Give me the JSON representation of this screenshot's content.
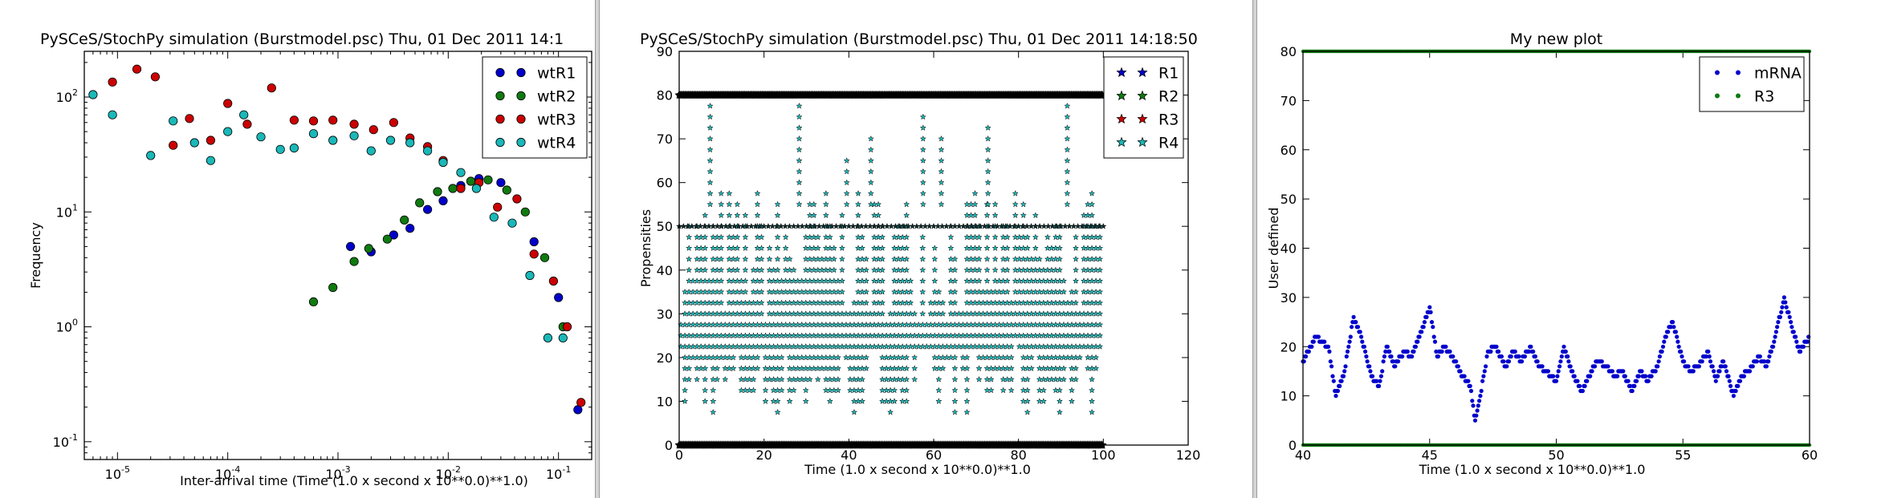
{
  "window": {
    "panel_count": 3
  },
  "chart_data": [
    {
      "type": "scatter",
      "title": "PySCeS/StochPy simulation (Burstmodel.psc) Thu, 01 Dec 2011 14:1",
      "xlabel": "Inter-arrival time (Time (1.0 x second x 10**0.0)**1.0)",
      "ylabel": "Frequency",
      "xscale": "log",
      "yscale": "log",
      "xlim": [
        5e-06,
        0.2
      ],
      "ylim": [
        0.07,
        250
      ],
      "x_ticks": [
        {
          "v": 1e-05,
          "b": "10",
          "e": "-5"
        },
        {
          "v": 0.0001,
          "b": "10",
          "e": "-4"
        },
        {
          "v": 0.001,
          "b": "10",
          "e": "-3"
        },
        {
          "v": 0.01,
          "b": "10",
          "e": "-2"
        },
        {
          "v": 0.1,
          "b": "10",
          "e": "-1"
        }
      ],
      "y_ticks": [
        {
          "v": 0.1,
          "b": "10",
          "e": "-1"
        },
        {
          "v": 1,
          "b": "10",
          "e": "0"
        },
        {
          "v": 10,
          "b": "10",
          "e": "1"
        },
        {
          "v": 100,
          "b": "10",
          "e": "2"
        }
      ],
      "legend_position": "top-right",
      "grid": false,
      "series": [
        {
          "name": "wtR1",
          "color": "#0000cc",
          "marker": "circle",
          "x": [
            0.0013,
            0.002,
            0.0032,
            0.0045,
            0.0065,
            0.009,
            0.013,
            0.019,
            0.03,
            0.06,
            0.1,
            0.15
          ],
          "y": [
            5.0,
            4.5,
            6.3,
            7.2,
            10.5,
            12.5,
            17.0,
            19.5,
            18.0,
            5.5,
            1.8,
            0.19
          ]
        },
        {
          "name": "wtR2",
          "color": "#107a10",
          "marker": "circle",
          "x": [
            0.0006,
            0.0009,
            0.0014,
            0.0019,
            0.0028,
            0.004,
            0.0055,
            0.008,
            0.011,
            0.016,
            0.023,
            0.034,
            0.05,
            0.075,
            0.11
          ],
          "y": [
            1.65,
            2.2,
            3.7,
            4.8,
            5.8,
            8.5,
            12.0,
            15.0,
            16.0,
            18.5,
            19.0,
            15.5,
            10.0,
            4.0,
            1.0
          ]
        },
        {
          "name": "wtR3",
          "color": "#cc0000",
          "marker": "circle",
          "x": [
            9e-06,
            1.5e-05,
            2.2e-05,
            3.2e-05,
            4.5e-05,
            7e-05,
            0.0001,
            0.00015,
            0.00025,
            0.0004,
            0.0006,
            0.0009,
            0.0014,
            0.0021,
            0.0032,
            0.0045,
            0.0065,
            0.009,
            0.013,
            0.019,
            0.028,
            0.042,
            0.06,
            0.09,
            0.12,
            0.16
          ],
          "y": [
            135,
            175,
            150,
            38,
            65,
            42,
            88,
            58,
            120,
            63,
            62,
            63,
            58,
            52,
            60,
            44,
            37,
            28,
            16,
            18,
            11,
            13,
            4.3,
            2.5,
            1.0,
            0.22
          ]
        },
        {
          "name": "wtR4",
          "color": "#1ab8b8",
          "marker": "circle",
          "x": [
            6e-06,
            9e-06,
            2e-05,
            3.2e-05,
            5e-05,
            7e-05,
            0.0001,
            0.00014,
            0.0002,
            0.0003,
            0.0004,
            0.0006,
            0.0009,
            0.0014,
            0.002,
            0.003,
            0.0045,
            0.0065,
            0.009,
            0.013,
            0.018,
            0.026,
            0.038,
            0.055,
            0.08,
            0.11
          ],
          "y": [
            105,
            70,
            31,
            62,
            40,
            28,
            50,
            70,
            45,
            35,
            36,
            48,
            42,
            46,
            34,
            42,
            40,
            34,
            27,
            22,
            16,
            9,
            8,
            2.8,
            0.8,
            0.8
          ]
        }
      ]
    },
    {
      "type": "scatter",
      "title": "PySCeS/StochPy simulation (Burstmodel.psc) Thu, 01 Dec 2011 14:18:50",
      "xlabel": "Time (1.0 x second x 10**0.0)**1.0",
      "ylabel": "Propensities",
      "xlim": [
        0,
        120
      ],
      "ylim": [
        0,
        90
      ],
      "x_ticks": [
        0,
        20,
        40,
        60,
        80,
        100,
        120
      ],
      "y_ticks": [
        0,
        10,
        20,
        30,
        40,
        50,
        60,
        70,
        80,
        90
      ],
      "legend_position": "top-right",
      "grid": false,
      "data_time_range": [
        0,
        100
      ],
      "series": [
        {
          "name": "R1",
          "color": "#0000cc",
          "marker": "star",
          "constant": 80
        },
        {
          "name": "R2",
          "color": "#107a10",
          "marker": "star",
          "constant": 0
        },
        {
          "name": "R3",
          "color": "#cc0000",
          "marker": "star",
          "constant": 50
        },
        {
          "name": "R4",
          "color": "#1ab8b8",
          "marker": "star",
          "spike_x": [
            0.8,
            7.3,
            28.3,
            39.5,
            45.2,
            57.5,
            61.8,
            72.8,
            91.5
          ],
          "spike_y": [
            20,
            82,
            78,
            67,
            70,
            77,
            70,
            73,
            80
          ],
          "level_min": 5,
          "level_max": 60,
          "level_step": 2.5
        }
      ]
    },
    {
      "type": "scatter",
      "title": "My new plot",
      "xlabel": "Time (1.0 x second x 10**0.0)**1.0",
      "ylabel": "User defined",
      "xlim": [
        40,
        60
      ],
      "ylim": [
        0,
        80
      ],
      "x_ticks": [
        40,
        45,
        50,
        55,
        60
      ],
      "y_ticks": [
        0,
        10,
        20,
        30,
        40,
        50,
        60,
        70,
        80
      ],
      "legend_position": "top-right",
      "grid": false,
      "series": [
        {
          "name": "mRNA",
          "color": "#0000cc",
          "marker": "dot",
          "x": [
            40.0,
            40.5,
            41.0,
            41.3,
            41.6,
            42.0,
            42.3,
            42.7,
            43.0,
            43.3,
            43.6,
            44.0,
            44.3,
            44.6,
            45.0,
            45.3,
            45.6,
            46.0,
            46.3,
            46.6,
            46.8,
            47.0,
            47.3,
            47.6,
            48.0,
            48.3,
            48.6,
            49.0,
            49.3,
            49.6,
            50.0,
            50.3,
            50.6,
            51.0,
            51.3,
            51.6,
            52.0,
            52.3,
            52.6,
            53.0,
            53.3,
            53.6,
            54.0,
            54.3,
            54.6,
            55.0,
            55.3,
            55.6,
            56.0,
            56.3,
            56.6,
            57.0,
            57.3,
            57.6,
            58.0,
            58.3,
            58.6,
            59.0,
            59.3,
            59.6,
            60.0
          ],
          "y": [
            17,
            22,
            20,
            10,
            14,
            26,
            22,
            14,
            12,
            20,
            16,
            19,
            18,
            22,
            28,
            18,
            20,
            17,
            14,
            12,
            5,
            10,
            19,
            20,
            16,
            19,
            17,
            20,
            16,
            15,
            13,
            20,
            15,
            11,
            14,
            17,
            16,
            14,
            15,
            11,
            15,
            13,
            16,
            22,
            25,
            17,
            15,
            16,
            19,
            13,
            17,
            10,
            14,
            15,
            18,
            16,
            21,
            30,
            24,
            19,
            22
          ]
        },
        {
          "name": "R3",
          "color": "#107a10",
          "marker": "dot",
          "constant_values": [
            0,
            80
          ]
        }
      ]
    }
  ]
}
